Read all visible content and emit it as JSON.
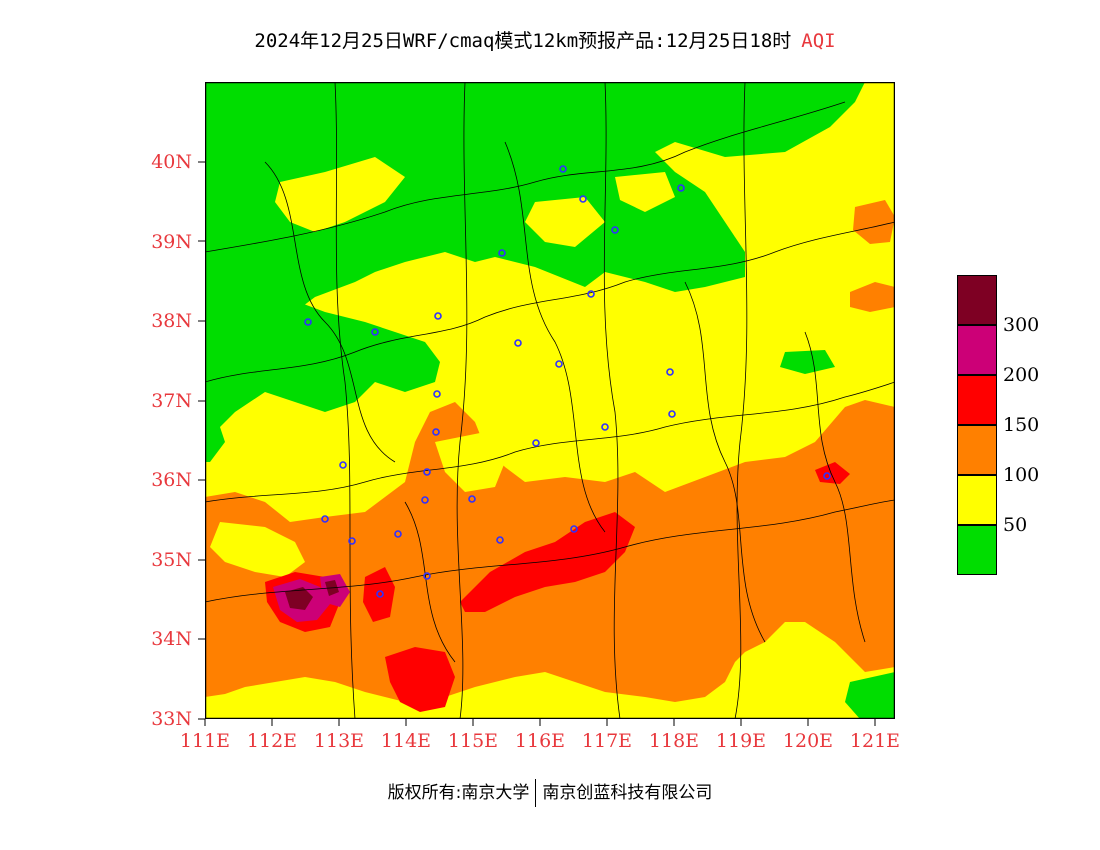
{
  "title": {
    "main": "2024年12月25日WRF/cmaq模式12km预报产品:12月25日18时",
    "product": "AQI"
  },
  "map": {
    "lat_labels": [
      "40N",
      "39N",
      "38N",
      "37N",
      "36N",
      "35N",
      "34N",
      "33N"
    ],
    "lon_labels": [
      "111E",
      "112E",
      "113E",
      "114E",
      "115E",
      "116E",
      "117E",
      "118E",
      "119E",
      "120E",
      "121E"
    ],
    "lat_range": [
      33,
      41
    ],
    "lon_range": [
      111,
      121.3
    ]
  },
  "legend": {
    "levels": [
      {
        "color": "#00dd00",
        "label": "50"
      },
      {
        "color": "#ffff00",
        "label": "100"
      },
      {
        "color": "#ff8000",
        "label": "150"
      },
      {
        "color": "#ff0000",
        "label": "200"
      },
      {
        "color": "#cc0077",
        "label": "300"
      },
      {
        "color": "#7e0023",
        "label": ""
      }
    ]
  },
  "footer": {
    "copyright": "版权所有:南京大学",
    "company": "南京创蓝科技有限公司"
  }
}
